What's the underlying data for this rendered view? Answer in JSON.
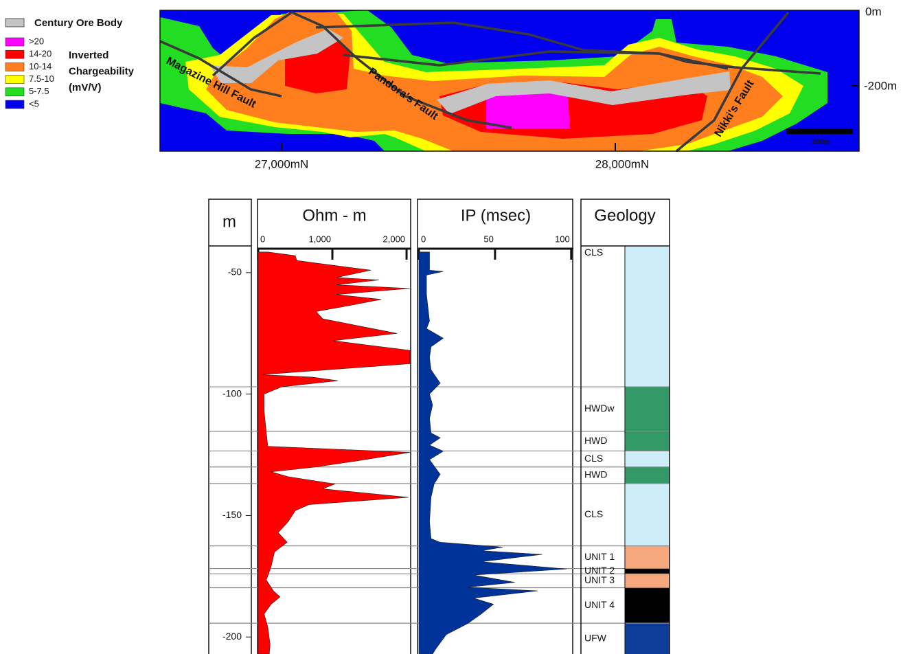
{
  "section": {
    "legend_title": "Century Ore Body",
    "legend": [
      {
        "name": ">20",
        "color": "#ff00ff"
      },
      {
        "name": "14-20",
        "color": "#ff0000"
      },
      {
        "name": "10-14",
        "color": "#ff7f1f"
      },
      {
        "name": "7.5-10",
        "color": "#ffff00"
      },
      {
        "name": "5-7.5",
        "color": "#22dd22"
      },
      {
        "name": "<5",
        "color": "#0000ee"
      }
    ],
    "legend_caption": [
      "Inverted",
      "Chargeability",
      "(mV/V)"
    ],
    "depth_labels": [
      "0m",
      "-200m"
    ],
    "northing_labels": [
      "27,000mN",
      "28,000mN"
    ],
    "faults": [
      "Magazine Hill Fault",
      "Pandora's Fault",
      "Nikki's Fault"
    ],
    "scale_label": "200m"
  },
  "depth_axis": {
    "title": "m",
    "ylim": [
      -39,
      -207
    ],
    "yticks": [
      -50,
      -100,
      -150,
      -200
    ]
  },
  "chart_data": [
    {
      "type": "area",
      "title": "Ohm - m",
      "color": "#ff0000",
      "xlim": [
        0,
        2055
      ],
      "xticks": [
        0,
        {
          "value": 1000,
          "label": "1,000"
        },
        {
          "value": 2000,
          "label": "2,000"
        }
      ],
      "depth": [
        -41.5,
        -43,
        -45,
        -49,
        -52,
        -53,
        -55,
        -56.5,
        -59,
        -61,
        -64,
        -66,
        -69,
        -75,
        -78,
        -80,
        -82,
        -87.5,
        -92,
        -93,
        -94.5,
        -97,
        -100,
        -107,
        -116,
        -121.5,
        -124,
        -127.5,
        -130,
        -132,
        -134,
        -137,
        -139,
        -142.5,
        -145.5,
        -148,
        -152.5,
        -157,
        -161,
        -165,
        -171,
        -176.5,
        -181,
        -183.5,
        -186.5,
        -190.5,
        -196,
        -203,
        -207
      ],
      "values": [
        130,
        500,
        520,
        1520,
        1055,
        1630,
        1055,
        2045,
        1055,
        1660,
        1150,
        780,
        870,
        1870,
        1010,
        1520,
        2045,
        2045,
        40,
        730,
        1075,
        315,
        80,
        80,
        110,
        130,
        2045,
        1330,
        780,
        175,
        405,
        1035,
        870,
        2025,
        685,
        500,
        405,
        270,
        390,
        220,
        175,
        110,
        205,
        295,
        175,
        80,
        130,
        160,
        150
      ]
    },
    {
      "type": "area",
      "title": "IP (msec)",
      "color": "#003399",
      "xlim": [
        0,
        101
      ],
      "xticks": [
        0,
        50,
        100
      ],
      "depth": [
        -41.5,
        -49,
        -49.5,
        -51,
        -59,
        -70,
        -73,
        -77,
        -80.5,
        -85,
        -90,
        -95.5,
        -100,
        -104.5,
        -110,
        -116,
        -118,
        -121,
        -123.5,
        -127,
        -133,
        -137,
        -142.5,
        -152.5,
        -159.5,
        -161,
        -163,
        -164.5,
        -166,
        -169,
        -172,
        -174.5,
        -177.5,
        -179.5,
        -181,
        -184,
        -186.5,
        -190.5,
        -194.5,
        -199,
        -205,
        -207
      ],
      "values": [
        7,
        7,
        16,
        5,
        5,
        7,
        5,
        16,
        8,
        7,
        8,
        14,
        7,
        9,
        7,
        8,
        14,
        7,
        16,
        7,
        14,
        10,
        8,
        7,
        8,
        14,
        55,
        41,
        81,
        41,
        97,
        36,
        63,
        32,
        78,
        36,
        49,
        41,
        32,
        18,
        11,
        9
      ]
    }
  ],
  "geology": {
    "title": "Geology",
    "units": [
      {
        "name": "CLS",
        "top": -39,
        "bottom": -97,
        "color": "#cdeef9"
      },
      {
        "name": "HWDw",
        "top": -97,
        "bottom": -115.3,
        "color": "#339966"
      },
      {
        "name": "HWD",
        "top": -115.3,
        "bottom": -123.4,
        "color": "#339966"
      },
      {
        "name": "CLS",
        "top": -123.4,
        "bottom": -130,
        "color": "#cdeef9"
      },
      {
        "name": "HWD",
        "top": -130,
        "bottom": -136.8,
        "color": "#339966"
      },
      {
        "name": "CLS",
        "top": -136.8,
        "bottom": -162.5,
        "color": "#cdeef9"
      },
      {
        "name": "UNIT 1",
        "top": -162.5,
        "bottom": -171.8,
        "color": "#f7a77d"
      },
      {
        "name": "UNIT 2",
        "top": -171.8,
        "bottom": -174,
        "color": "#000000"
      },
      {
        "name": "UNIT 3",
        "top": -174,
        "bottom": -179.7,
        "color": "#f7a77d"
      },
      {
        "name": "UNIT 4",
        "top": -179.7,
        "bottom": -194.3,
        "color": "#000000"
      },
      {
        "name": "UFW",
        "top": -194.3,
        "bottom": -207,
        "color": "#0d3d99"
      }
    ]
  }
}
